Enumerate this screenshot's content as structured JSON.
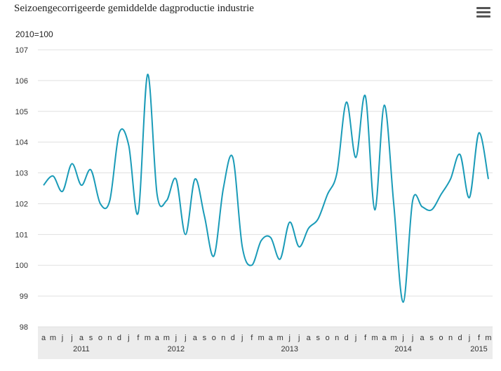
{
  "chart_data": {
    "type": "line",
    "title": "Seizoengecorrigeerde gemiddelde dagproductie industrie",
    "unit_label": "2010=100",
    "ylim": [
      98,
      107
    ],
    "yticks": [
      98,
      99,
      100,
      101,
      102,
      103,
      104,
      105,
      106,
      107
    ],
    "grid": true,
    "legend": "none",
    "line_color": "#1a9bb8",
    "month_labels": [
      "a",
      "m",
      "j",
      "j",
      "a",
      "s",
      "o",
      "n",
      "d",
      "j",
      "f",
      "m",
      "a",
      "m",
      "j",
      "j",
      "a",
      "s",
      "o",
      "n",
      "d",
      "j",
      "f",
      "m",
      "a",
      "m",
      "j",
      "j",
      "a",
      "s",
      "o",
      "n",
      "d",
      "j",
      "f",
      "m",
      "a",
      "m",
      "j",
      "j",
      "a",
      "s",
      "o",
      "n",
      "d",
      "j",
      "f",
      "m"
    ],
    "year_labels": [
      {
        "label": "2011",
        "month_index": 4
      },
      {
        "label": "2012",
        "month_index": 14
      },
      {
        "label": "2013",
        "month_index": 26
      },
      {
        "label": "2014",
        "month_index": 38
      },
      {
        "label": "2015",
        "month_index": 46
      }
    ],
    "series": [
      {
        "values": [
          102.6,
          102.9,
          102.4,
          103.3,
          102.6,
          103.1,
          102.0,
          102.1,
          104.3,
          103.9,
          101.7,
          106.2,
          102.3,
          102.1,
          102.8,
          101.0,
          102.8,
          101.6,
          100.3,
          102.5,
          103.5,
          100.6,
          100.0,
          100.8,
          100.9,
          100.2,
          101.4,
          100.6,
          101.2,
          101.5,
          102.3,
          103.0,
          105.3,
          103.5,
          105.5,
          101.8,
          105.2,
          102.0,
          98.8,
          102.1,
          101.9,
          101.8,
          102.3,
          102.8,
          103.6,
          102.2,
          104.3,
          102.8
        ]
      }
    ]
  },
  "menu": {
    "icon": "hamburger-menu-icon"
  }
}
